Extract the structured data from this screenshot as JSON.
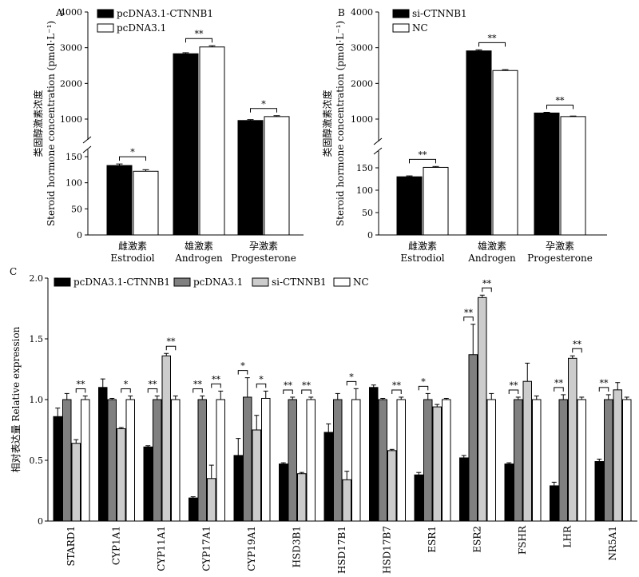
{
  "chart_data": [
    {
      "panel": "A",
      "type": "bar",
      "ylabel_cn": "类固醇激素浓度",
      "ylabel": "Steroid hormone concentration (pmol·L⁻¹)",
      "ylim": [
        0,
        4000
      ],
      "axis_break": true,
      "yticks": [
        "0",
        "50",
        "100",
        "150",
        "1000",
        "2000",
        "3000",
        "4000"
      ],
      "legend_placement": "top-left",
      "categories_cn": [
        "雌激素",
        "雄激素",
        "孕激素"
      ],
      "categories": [
        "Estrodiol",
        "Androgen",
        "Progesterone"
      ],
      "series": [
        {
          "name": "pcDNA3.1-CTNNB1",
          "values": [
            133,
            2830,
            960
          ],
          "errors": [
            3,
            30,
            25
          ]
        },
        {
          "name": "pcDNA3.1",
          "values": [
            122,
            3020,
            1070
          ],
          "errors": [
            3,
            35,
            25
          ]
        }
      ],
      "significance": [
        "*",
        "**",
        "*"
      ]
    },
    {
      "panel": "B",
      "type": "bar",
      "ylabel_cn": "类固醇激素浓度",
      "ylabel": "Steroid hormone concentration (pmol·L⁻¹)",
      "ylim": [
        0,
        4000
      ],
      "axis_break": true,
      "yticks": [
        "0",
        "50",
        "100",
        "150",
        "1000",
        "2000",
        "3000",
        "4000"
      ],
      "legend_placement": "top-left",
      "categories_cn": [
        "雌激素",
        "雄激素",
        "孕激素"
      ],
      "categories": [
        "Estrodiol",
        "Androgen",
        "Progesterone"
      ],
      "series": [
        {
          "name": "si-CTNNB1",
          "values": [
            130,
            2910,
            1170
          ],
          "errors": [
            2,
            30,
            20
          ]
        },
        {
          "name": "NC",
          "values": [
            151,
            2360,
            1070
          ],
          "errors": [
            2,
            25,
            15
          ]
        }
      ],
      "significance": [
        "**",
        "**",
        "**"
      ]
    },
    {
      "panel": "C",
      "type": "bar",
      "ylabel_cn": "相对表达量",
      "ylabel": "Relative expression",
      "ylim": [
        0,
        2.0
      ],
      "yticks": [
        "0",
        "0.5",
        "1.0",
        "1.5",
        "2.0"
      ],
      "legend_placement": "top",
      "categories": [
        "STARD1",
        "CYP1A1",
        "CYP11A1",
        "CYP17A1",
        "CYP19A1",
        "HSD3B1",
        "HSD17B1",
        "HSD17B7",
        "ESR1",
        "ESR2",
        "FSHR",
        "LHR",
        "NR5A1"
      ],
      "series": [
        {
          "name": "pcDNA3.1-CTNNB1",
          "color": "#000000",
          "values": [
            0.86,
            1.1,
            0.61,
            0.19,
            0.54,
            0.47,
            0.73,
            1.1,
            0.38,
            0.52,
            0.47,
            0.29,
            0.49
          ],
          "errors": [
            0.07,
            0.07,
            0.01,
            0.01,
            0.14,
            0.01,
            0.07,
            0.02,
            0.02,
            0.02,
            0.01,
            0.03,
            0.02
          ]
        },
        {
          "name": "pcDNA3.1",
          "color": "#808080",
          "values": [
            1.0,
            1.0,
            1.0,
            1.0,
            1.02,
            1.0,
            1.0,
            1.0,
            1.0,
            1.37,
            1.0,
            1.0,
            1.0
          ],
          "errors": [
            0.05,
            0.01,
            0.03,
            0.03,
            0.16,
            0.02,
            0.05,
            0.01,
            0.05,
            0.25,
            0.02,
            0.04,
            0.04
          ]
        },
        {
          "name": "si-CTNNB1",
          "color": "#cccccc",
          "values": [
            0.64,
            0.76,
            1.36,
            0.35,
            0.75,
            0.39,
            0.34,
            0.58,
            0.94,
            1.84,
            1.15,
            1.34,
            1.08
          ],
          "errors": [
            0.03,
            0.01,
            0.02,
            0.11,
            0.12,
            0.01,
            0.07,
            0.01,
            0.02,
            0.02,
            0.15,
            0.02,
            0.06
          ]
        },
        {
          "name": "NC",
          "color": "#ffffff",
          "values": [
            1.0,
            1.0,
            1.0,
            1.0,
            1.01,
            1.0,
            1.0,
            1.0,
            1.0,
            1.0,
            1.0,
            1.0,
            1.0
          ],
          "errors": [
            0.03,
            0.03,
            0.03,
            0.07,
            0.06,
            0.02,
            0.09,
            0.02,
            0.01,
            0.05,
            0.03,
            0.02,
            0.02
          ]
        }
      ],
      "significance_a": [
        "",
        "",
        "**",
        "**",
        "*",
        "**",
        "",
        "",
        "*",
        "**",
        "**",
        "**",
        "**"
      ],
      "significance_b": [
        "**",
        "*",
        "**",
        "**",
        "*",
        "**",
        "*",
        "**",
        "",
        "**",
        "",
        "**",
        ""
      ]
    }
  ]
}
